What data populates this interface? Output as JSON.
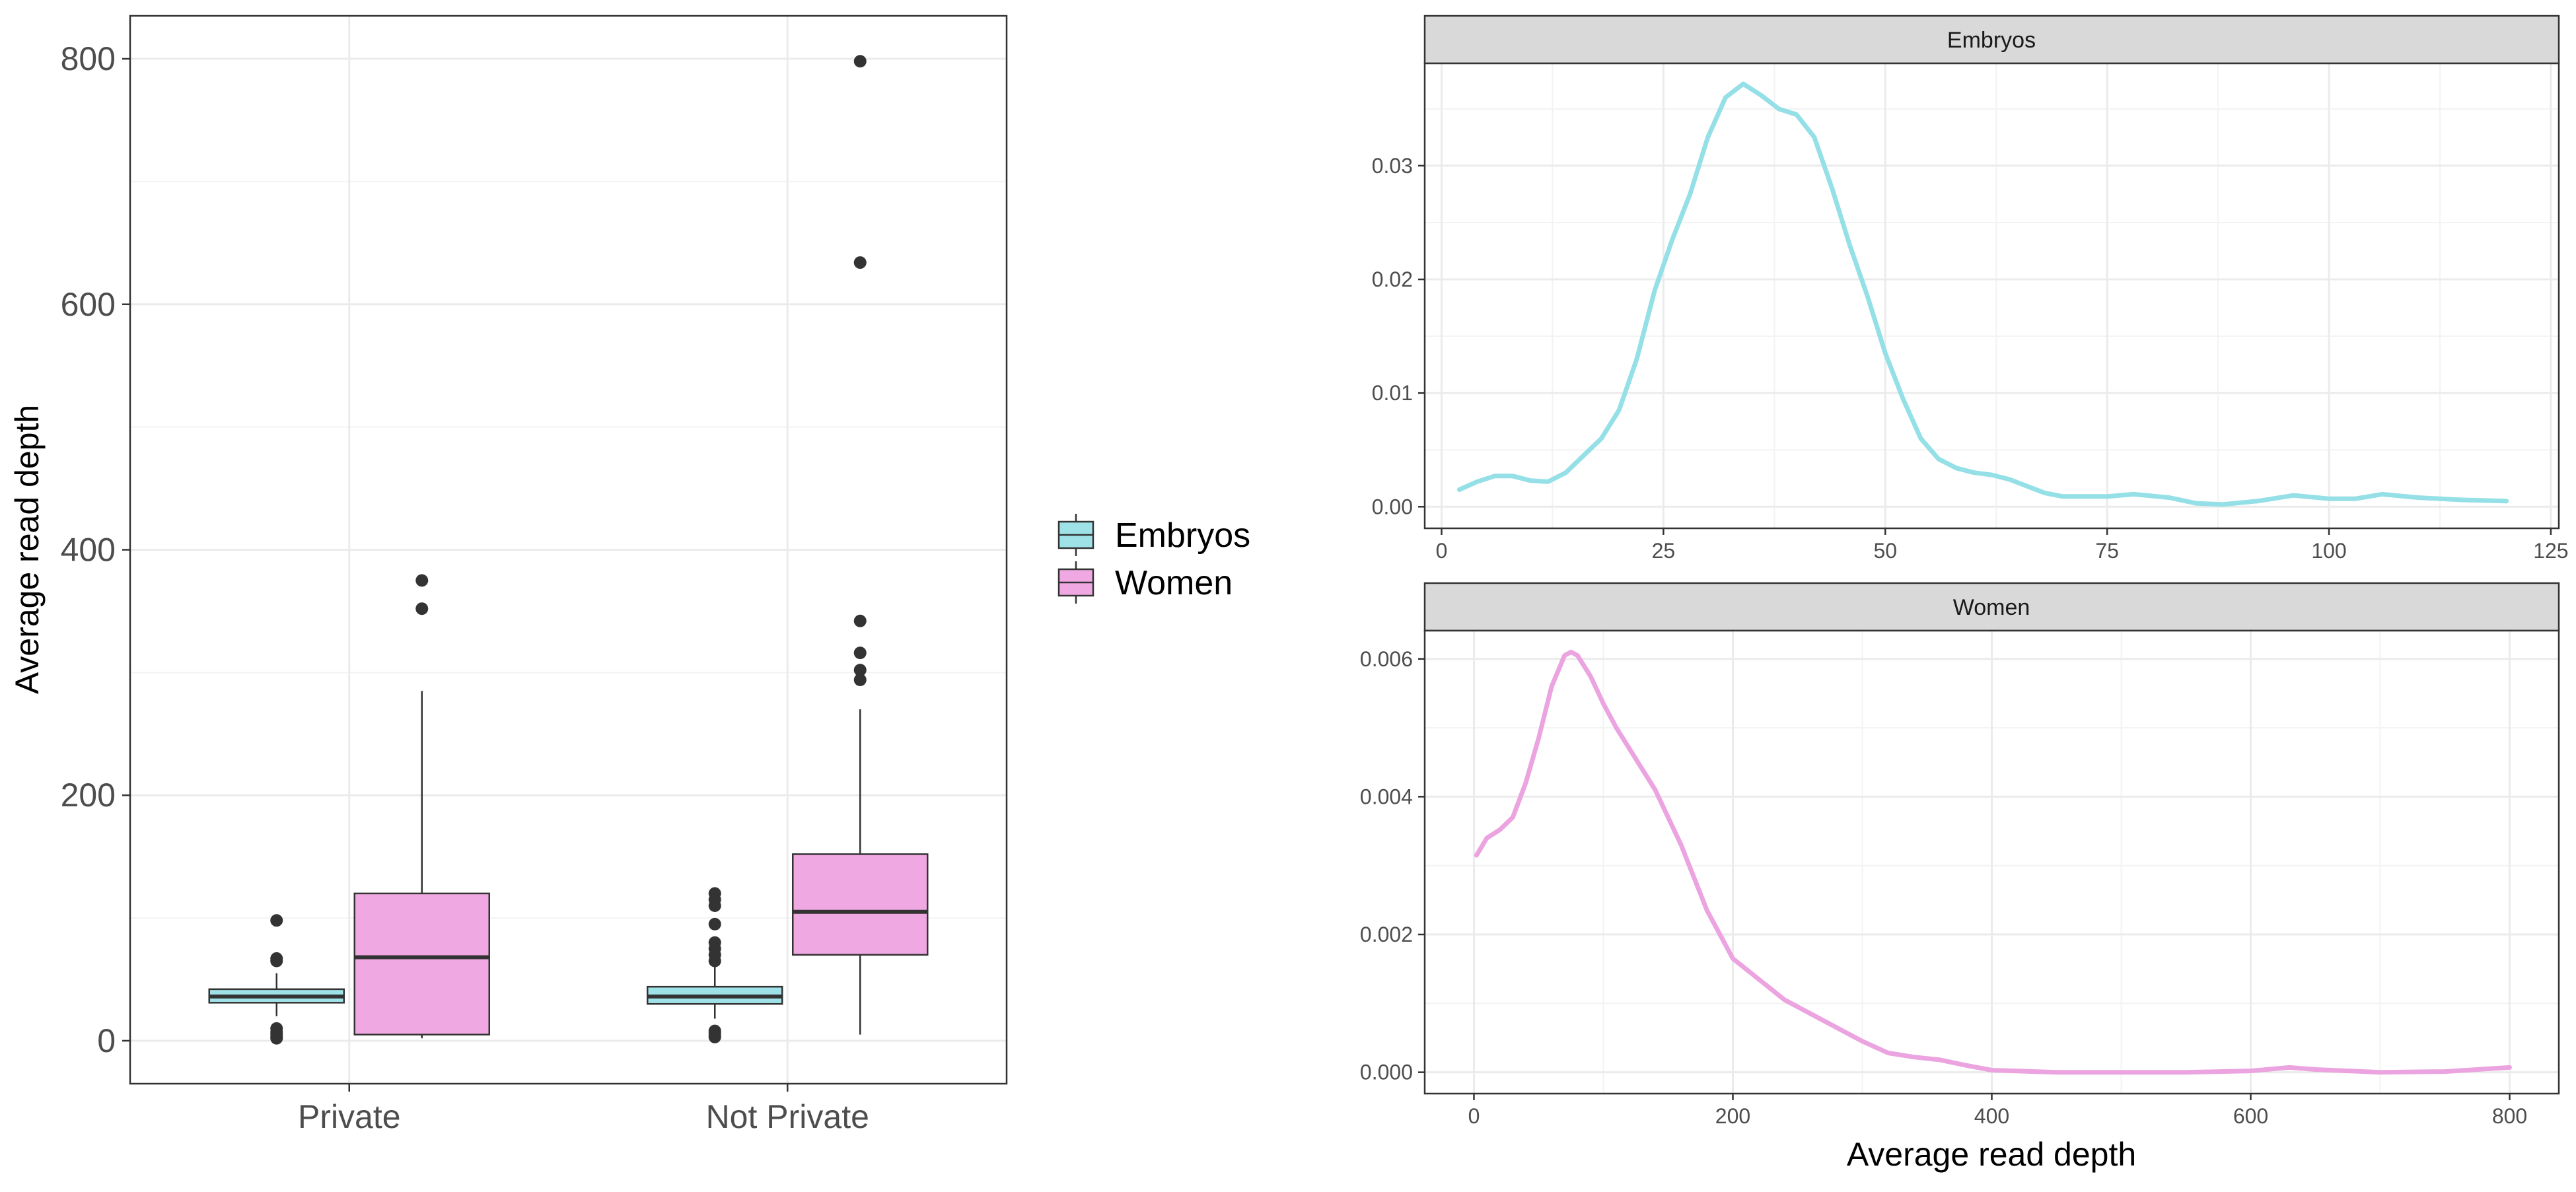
{
  "colors": {
    "embryos": "#9EE2E8",
    "women": "#EFA8E2",
    "embryos_line": "#94E0E6",
    "women_line": "#EBA4E0",
    "outline": "#333333",
    "strip_bg": "#D9D9D9",
    "grid_major": "#EBEBEB",
    "grid_minor": "#F3F3F3"
  },
  "legend": {
    "entries": [
      "Embryos",
      "Women"
    ]
  },
  "chart_data": [
    {
      "type": "boxplot",
      "title": "",
      "xlabel": "",
      "ylabel": "Average read depth",
      "categories": [
        "Private",
        "Not Private"
      ],
      "ylim": [
        -35,
        835
      ],
      "yticks": [
        0,
        200,
        400,
        600,
        800
      ],
      "grid": true,
      "legend_position": "right",
      "series": [
        {
          "name": "Embryos",
          "boxes": [
            {
              "category": "Private",
              "min": 20,
              "q1": 31,
              "median": 36,
              "q3": 42,
              "max": 55,
              "outliers": [
                98,
                67,
                65,
                10,
                7,
                5,
                3,
                2
              ]
            },
            {
              "category": "Not Private",
              "min": 18,
              "q1": 30,
              "median": 36,
              "q3": 44,
              "max": 60,
              "outliers": [
                120,
                115,
                110,
                95,
                80,
                75,
                70,
                65,
                8,
                6,
                4,
                3
              ]
            }
          ]
        },
        {
          "name": "Women",
          "boxes": [
            {
              "category": "Private",
              "min": 2,
              "q1": 5,
              "median": 68,
              "q3": 120,
              "max": 285,
              "outliers": [
                375,
                352
              ]
            },
            {
              "category": "Not Private",
              "min": 5,
              "q1": 70,
              "median": 105,
              "q3": 152,
              "max": 270,
              "outliers": [
                798,
                634,
                342,
                316,
                302,
                294
              ]
            }
          ]
        }
      ]
    },
    {
      "type": "line",
      "title": "",
      "panel": "Embryos",
      "xlabel": "",
      "ylabel": "",
      "xlim": [
        -1.9,
        125.9
      ],
      "ylim": [
        -0.0019,
        0.039
      ],
      "xticks": [
        0,
        25,
        50,
        75,
        100,
        125
      ],
      "yticks": [
        "0.00",
        "0.01",
        "0.02",
        "0.03"
      ],
      "ytick_values": [
        0,
        0.01,
        0.02,
        0.03
      ],
      "grid": true,
      "series": [
        {
          "name": "Embryos",
          "x": [
            2,
            4,
            6,
            8,
            10,
            12,
            14,
            16,
            18,
            20,
            22,
            24,
            26,
            28,
            30,
            32,
            34,
            36,
            38,
            40,
            42,
            44,
            46,
            48,
            50,
            52,
            54,
            56,
            58,
            60,
            62,
            64,
            66,
            68,
            70,
            72,
            75,
            78,
            82,
            85,
            88,
            92,
            96,
            100,
            103,
            106,
            110,
            115,
            120
          ],
          "y": [
            0.0015,
            0.0022,
            0.0027,
            0.0027,
            0.0023,
            0.0022,
            0.003,
            0.0045,
            0.006,
            0.0085,
            0.013,
            0.019,
            0.0235,
            0.0275,
            0.0325,
            0.036,
            0.0372,
            0.0362,
            0.035,
            0.0345,
            0.0325,
            0.028,
            0.023,
            0.0185,
            0.0135,
            0.0095,
            0.006,
            0.0042,
            0.0034,
            0.003,
            0.0028,
            0.0024,
            0.0018,
            0.0012,
            0.0009,
            0.0009,
            0.0009,
            0.0011,
            0.0008,
            0.0003,
            0.0002,
            0.0005,
            0.001,
            0.0007,
            0.0007,
            0.0011,
            0.0008,
            0.0006,
            0.0005
          ]
        }
      ]
    },
    {
      "type": "line",
      "title": "",
      "panel": "Women",
      "xlabel": "Average read depth",
      "ylabel": "",
      "xlim": [
        -38,
        838
      ],
      "ylim": [
        -0.00031,
        0.00641
      ],
      "xticks": [
        0,
        200,
        400,
        600,
        800
      ],
      "yticks": [
        "0.000",
        "0.002",
        "0.004",
        "0.006"
      ],
      "ytick_values": [
        0,
        0.002,
        0.004,
        0.006
      ],
      "grid": true,
      "series": [
        {
          "name": "Women",
          "x": [
            2,
            10,
            20,
            30,
            40,
            50,
            60,
            70,
            75,
            80,
            90,
            100,
            110,
            120,
            140,
            160,
            180,
            200,
            220,
            240,
            260,
            280,
            300,
            320,
            340,
            360,
            380,
            400,
            450,
            500,
            550,
            600,
            630,
            650,
            700,
            750,
            800
          ],
          "y": [
            0.00315,
            0.0034,
            0.00352,
            0.0037,
            0.0042,
            0.00485,
            0.0056,
            0.00605,
            0.0061,
            0.00605,
            0.00575,
            0.00535,
            0.005,
            0.0047,
            0.0041,
            0.0033,
            0.00235,
            0.00165,
            0.00135,
            0.00105,
            0.00085,
            0.00065,
            0.00045,
            0.00028,
            0.00022,
            0.00018,
            0.0001,
            3e-05,
            0.0,
            0.0,
            0.0,
            2e-05,
            7e-05,
            4e-05,
            0.0,
            1e-05,
            7e-05
          ]
        }
      ]
    }
  ]
}
